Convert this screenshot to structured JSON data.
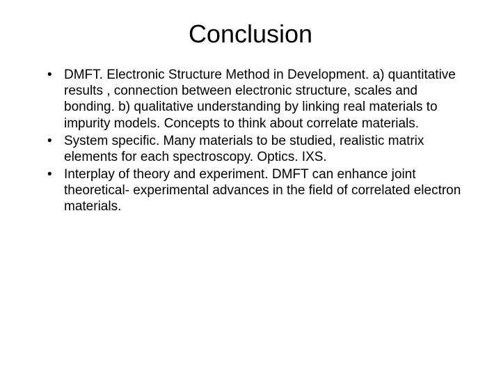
{
  "slide": {
    "title": "Conclusion",
    "title_fontsize": 36,
    "title_color": "#000000",
    "body_fontsize": 19,
    "body_color": "#000000",
    "background_color": "#ffffff",
    "bullets": [
      "DMFT. Electronic Structure Method in Development. a) quantitative results , connection between electronic structure, scales and bonding. b) qualitative understanding by linking real materials to impurity models. Concepts to think about correlate materials.",
      "System specific. Many materials to be studied, realistic matrix elements for each spectroscopy. Optics. IXS.",
      "Interplay of theory and experiment. DMFT can enhance joint theoretical- experimental advances in the field of correlated electron materials."
    ]
  }
}
